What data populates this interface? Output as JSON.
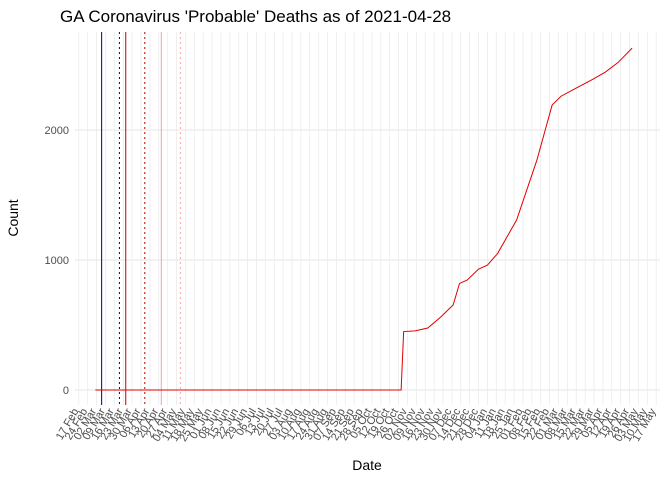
{
  "chart_data": {
    "type": "line",
    "title": "GA Coronavirus 'Probable' Deaths as of 2021-04-28",
    "x_label": "Date",
    "y_label": "Count",
    "series": [
      {
        "color": "#e00000",
        "x": [
          13,
          254,
          255,
          256,
          265,
          275,
          285,
          295,
          300,
          306,
          315,
          322,
          330,
          345,
          361,
          373,
          380,
          392,
          405,
          415,
          425,
          436
        ],
        "values": [
          0,
          0,
          230,
          450,
          455,
          477,
          560,
          654,
          820,
          846,
          930,
          961,
          1050,
          1308,
          1769,
          2192,
          2260,
          2323,
          2390,
          2446,
          2520,
          2630
        ]
      }
    ],
    "reference_lines": [
      {
        "x": 18,
        "color": "#00008b",
        "style": "solid"
      },
      {
        "x": 32,
        "color": "#00008b",
        "style": "dotted"
      },
      {
        "x": 37,
        "color": "#c00000",
        "style": "solid"
      },
      {
        "x": 52,
        "color": "#c00000",
        "style": "dotted"
      },
      {
        "x": 65,
        "color": "#f4a0a0",
        "style": "solid"
      },
      {
        "x": 80,
        "color": "#f4a0a0",
        "style": "dotted"
      }
    ],
    "xlim": [
      -3,
      458
    ],
    "ylim": [
      -115,
      2754
    ],
    "yticks": [
      0,
      1000,
      2000
    ],
    "xticks": [
      {
        "value": 0,
        "label": "17 Feb"
      },
      {
        "value": 7,
        "label": "24 Feb"
      },
      {
        "value": 14,
        "label": "02 Mar"
      },
      {
        "value": 21,
        "label": "09 Mar"
      },
      {
        "value": 28,
        "label": "16 Mar"
      },
      {
        "value": 35,
        "label": "23 Mar"
      },
      {
        "value": 42,
        "label": "30 Mar"
      },
      {
        "value": 49,
        "label": "06 Apr"
      },
      {
        "value": 56,
        "label": "13 Apr"
      },
      {
        "value": 63,
        "label": "20 Apr"
      },
      {
        "value": 70,
        "label": "27 Apr"
      },
      {
        "value": 77,
        "label": "04 May"
      },
      {
        "value": 84,
        "label": "11 May"
      },
      {
        "value": 91,
        "label": "18 May"
      },
      {
        "value": 98,
        "label": "25 May"
      },
      {
        "value": 105,
        "label": "01 Jun"
      },
      {
        "value": 112,
        "label": "08 Jun"
      },
      {
        "value": 119,
        "label": "15 Jun"
      },
      {
        "value": 126,
        "label": "22 Jun"
      },
      {
        "value": 133,
        "label": "29 Jun"
      },
      {
        "value": 140,
        "label": "06 Jul"
      },
      {
        "value": 147,
        "label": "13 Jul"
      },
      {
        "value": 154,
        "label": "20 Jul"
      },
      {
        "value": 161,
        "label": "27 Jul"
      },
      {
        "value": 168,
        "label": "03 Aug"
      },
      {
        "value": 175,
        "label": "10 Aug"
      },
      {
        "value": 182,
        "label": "17 Aug"
      },
      {
        "value": 189,
        "label": "24 Aug"
      },
      {
        "value": 196,
        "label": "31 Aug"
      },
      {
        "value": 203,
        "label": "07 Sep"
      },
      {
        "value": 210,
        "label": "14 Sep"
      },
      {
        "value": 217,
        "label": "21 Sep"
      },
      {
        "value": 224,
        "label": "28 Sep"
      },
      {
        "value": 231,
        "label": "05 Oct"
      },
      {
        "value": 238,
        "label": "12 Oct"
      },
      {
        "value": 245,
        "label": "19 Oct"
      },
      {
        "value": 252,
        "label": "26 Oct"
      },
      {
        "value": 259,
        "label": "02 Nov"
      },
      {
        "value": 266,
        "label": "09 Nov"
      },
      {
        "value": 273,
        "label": "16 Nov"
      },
      {
        "value": 280,
        "label": "23 Nov"
      },
      {
        "value": 287,
        "label": "30 Nov"
      },
      {
        "value": 294,
        "label": "07 Dec"
      },
      {
        "value": 301,
        "label": "14 Dec"
      },
      {
        "value": 308,
        "label": "21 Dec"
      },
      {
        "value": 315,
        "label": "28 Dec"
      },
      {
        "value": 322,
        "label": "04 Jan"
      },
      {
        "value": 329,
        "label": "11 Jan"
      },
      {
        "value": 336,
        "label": "18 Jan"
      },
      {
        "value": 343,
        "label": "25 Jan"
      },
      {
        "value": 350,
        "label": "01 Feb"
      },
      {
        "value": 357,
        "label": "08 Feb"
      },
      {
        "value": 364,
        "label": "15 Feb"
      },
      {
        "value": 371,
        "label": "22 Feb"
      },
      {
        "value": 378,
        "label": "01 Mar"
      },
      {
        "value": 385,
        "label": "08 Mar"
      },
      {
        "value": 392,
        "label": "15 Mar"
      },
      {
        "value": 399,
        "label": "22 Mar"
      },
      {
        "value": 406,
        "label": "29 Mar"
      },
      {
        "value": 413,
        "label": "05 Apr"
      },
      {
        "value": 420,
        "label": "12 Apr"
      },
      {
        "value": 427,
        "label": "19 Apr"
      },
      {
        "value": 434,
        "label": "26 Apr"
      },
      {
        "value": 441,
        "label": "03 May"
      },
      {
        "value": 448,
        "label": "10 May"
      },
      {
        "value": 455,
        "label": "17 May"
      }
    ],
    "grid": true
  }
}
